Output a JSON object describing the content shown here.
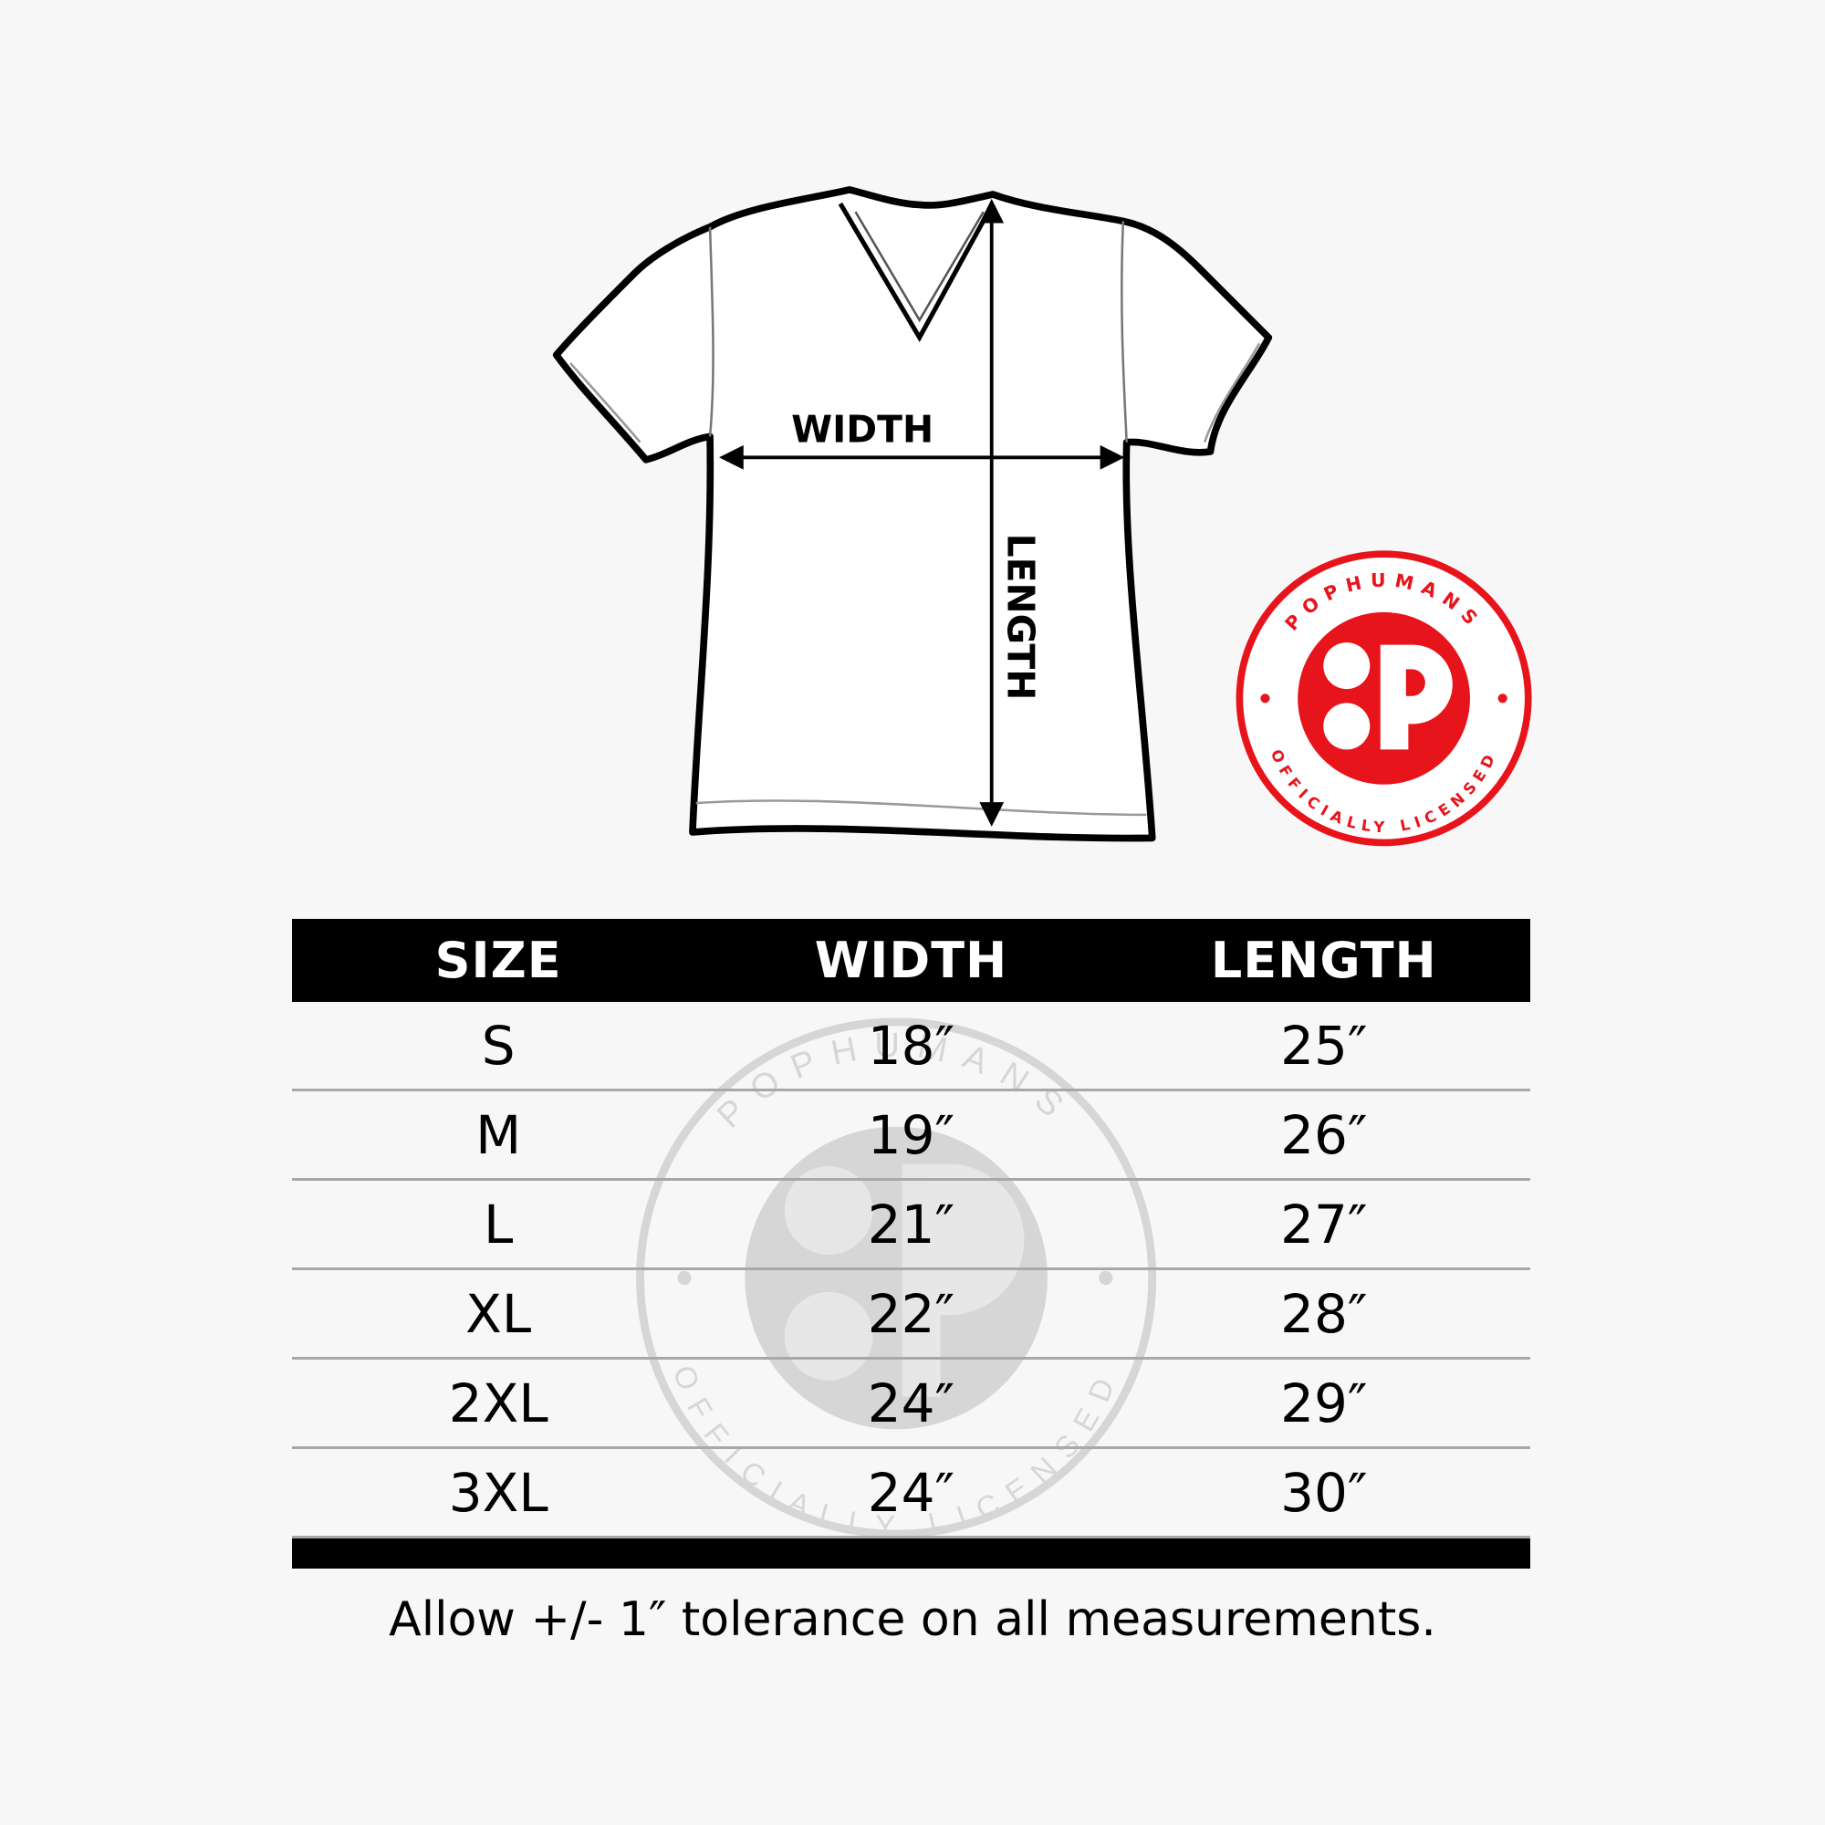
{
  "diagram": {
    "width_label": "WIDTH",
    "length_label": "LENGTH"
  },
  "badge": {
    "brand": "POPHUMANS",
    "tagline": "OFFICIALLY LICENSED",
    "color": "#e8141b"
  },
  "watermark": {
    "brand": "POPHUMANS",
    "tagline": "OFFICIALLY LICENSED"
  },
  "table": {
    "headers": [
      "SIZE",
      "WIDTH",
      "LENGTH"
    ],
    "rows": [
      [
        "S",
        "18″",
        "25″"
      ],
      [
        "M",
        "19″",
        "26″"
      ],
      [
        "L",
        "21″",
        "27″"
      ],
      [
        "XL",
        "22″",
        "28″"
      ],
      [
        "2XL",
        "24″",
        "29″"
      ],
      [
        "3XL",
        "24″",
        "30″"
      ]
    ]
  },
  "note": "Allow +/- 1″ tolerance on all measurements."
}
